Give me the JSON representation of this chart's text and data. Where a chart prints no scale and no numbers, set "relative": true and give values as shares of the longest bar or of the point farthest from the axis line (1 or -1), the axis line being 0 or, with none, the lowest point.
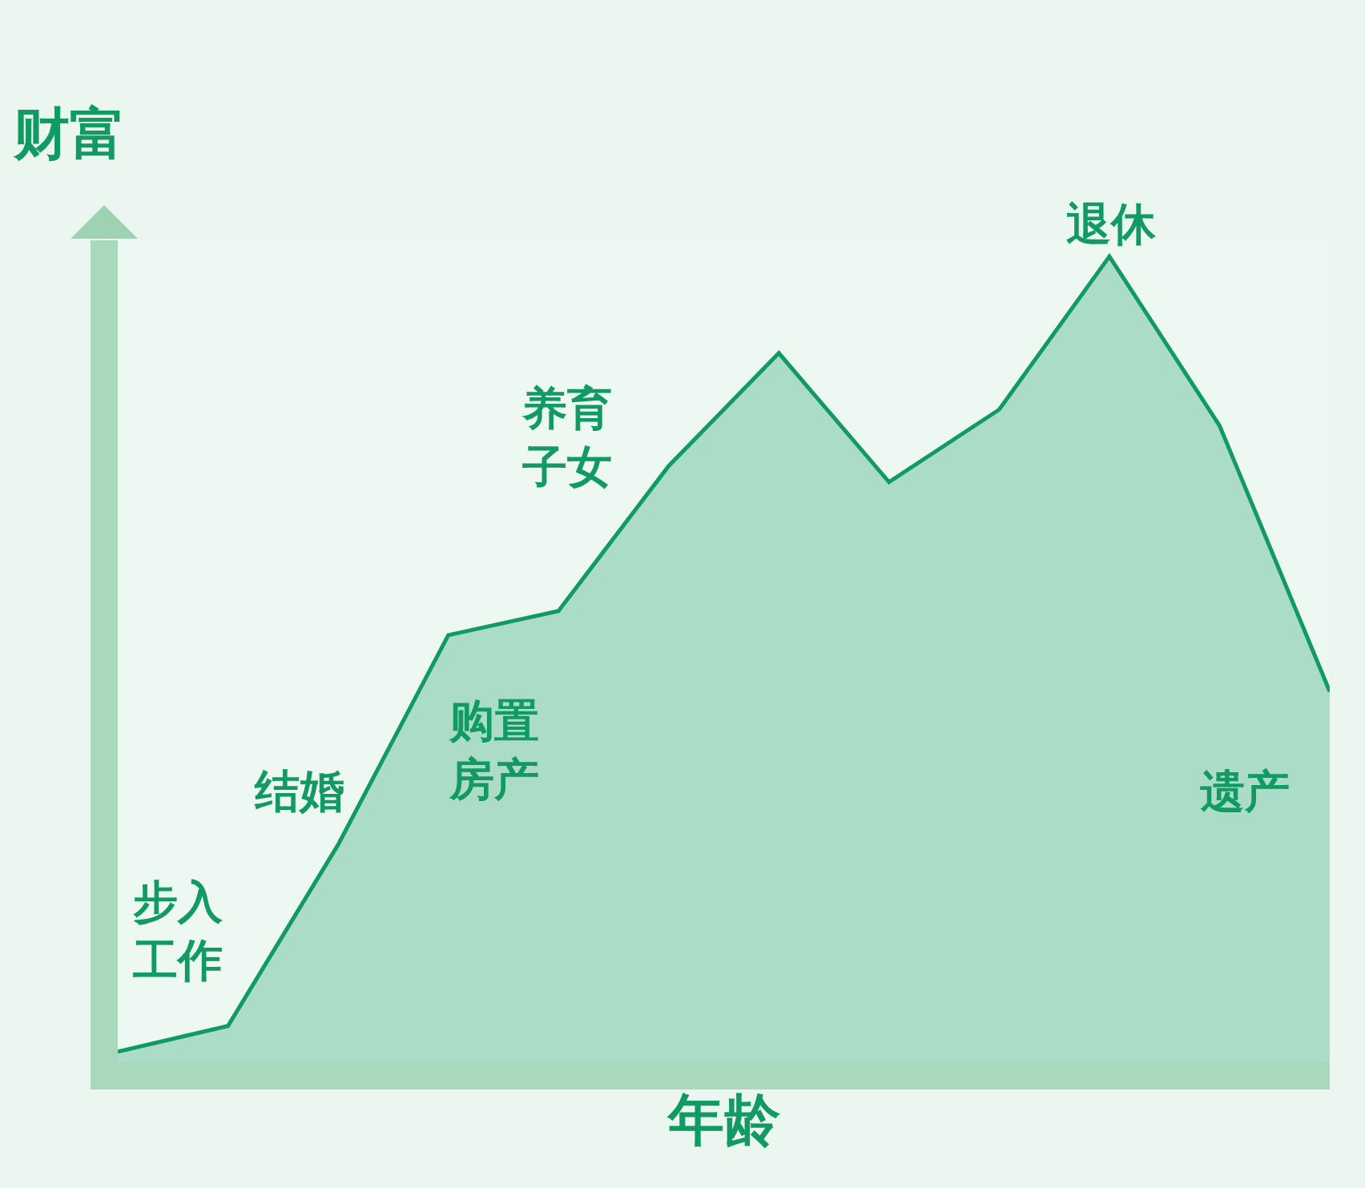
{
  "chart_data": {
    "type": "area",
    "relative": true,
    "xlabel": "年龄",
    "ylabel": "财富",
    "categories": [
      null,
      null,
      null,
      null,
      null,
      null,
      null,
      null,
      null,
      null,
      null,
      null
    ],
    "values": [
      0.013,
      0.045,
      0.27,
      0.53,
      0.56,
      0.74,
      0.88,
      0.72,
      0.81,
      1,
      0.79,
      0.46
    ],
    "color": "#119a62",
    "annotations": [
      "步入工作",
      "结婚",
      "购置房产",
      "养育子女",
      "退休",
      "遗产"
    ],
    "grid": false,
    "marker": "none",
    "line_style": "solid"
  }
}
